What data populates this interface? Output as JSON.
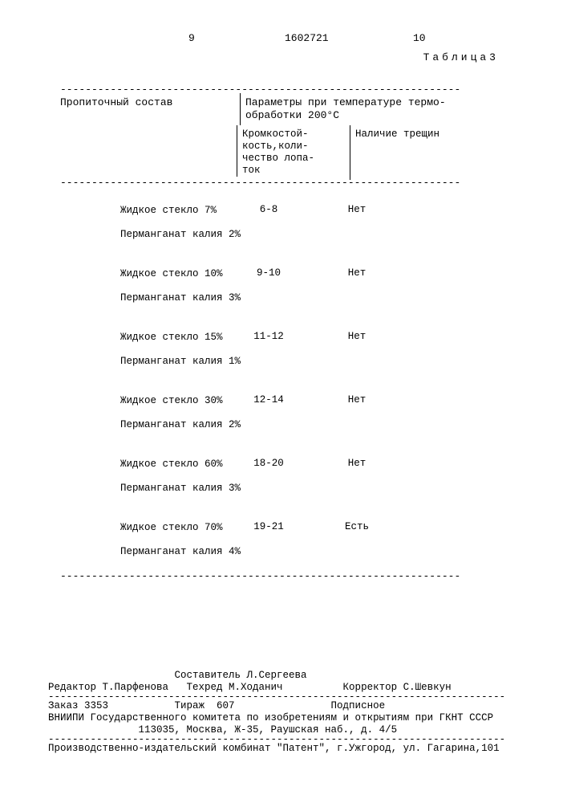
{
  "header": {
    "page_left": "9",
    "doc_number": "1602721",
    "page_right": "10",
    "table_label": "Таблица3"
  },
  "table": {
    "dash_segment": "----------------------------------------------------------------",
    "col1_header": "Пропиточный   состав",
    "col2_header_l1": "Параметры при температуре термо-",
    "col2_header_l2": "обработки   200°С",
    "sub_col2_l1": "Кромкостой-",
    "sub_col2_l2": "кость,коли-",
    "sub_col2_l3": "чество лопа-",
    "sub_col2_l4": "ток",
    "sub_col3": "Наличие трещин",
    "rows": [
      {
        "a": "Жидкое стекло 7%",
        "b": "Перманганат калия 2%",
        "v": "6-8",
        "c": "Нет"
      },
      {
        "a": "Жидкое стекло 10%",
        "b": "Перманганат калия 3%",
        "v": "9-10",
        "c": "Нет"
      },
      {
        "a": "Жидкое стекло 15%",
        "b": "Перманганат калия 1%",
        "v": "11-12",
        "c": "Нет"
      },
      {
        "a": "Жидкое стекло 30%",
        "b": "Перманганат калия 2%",
        "v": "12-14",
        "c": "Нет"
      },
      {
        "a": "Жидкое стекло 60%",
        "b": "Перманганат калия 3%",
        "v": "18-20",
        "c": "Нет"
      },
      {
        "a": "Жидкое стекло 70%",
        "b": "Перманганат калия 4%",
        "v": "19-21",
        "c": "Есть"
      }
    ]
  },
  "footer": {
    "dash": "----------------------------------------------------------------------------",
    "line1a": "                     Составитель Л.Сергеева",
    "line1b": "Редактор Т.Парфенова   Техред М.Ходанич          Корректор С.Шевкун",
    "line2a": "Заказ 3353           Тираж  607                Подписное",
    "line2b": "ВНИИПИ Государственного комитета по изобретениям и открытиям при ГКНТ СССР",
    "line2c": "               113035, Москва, Ж-35, Раушская наб., д. 4/5",
    "line3": "Производственно-издательский комбинат \"Патент\", г.Ужгород, ул. Гагарина,101"
  }
}
